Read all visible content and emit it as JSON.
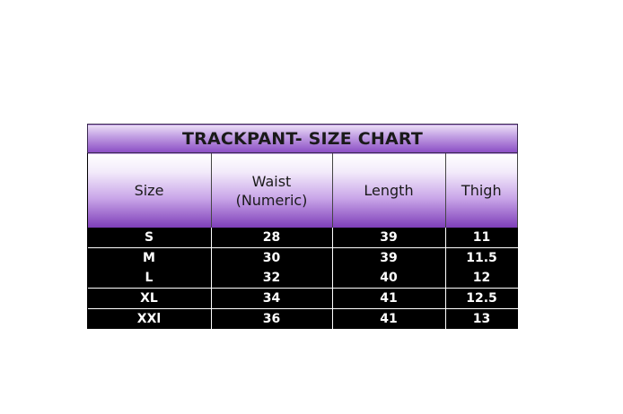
{
  "title": "TRACKPANT- SIZE CHART",
  "columns": [
    "Size",
    "Waist (Numeric)",
    "Length",
    "Thigh"
  ],
  "rows": [
    [
      "S",
      "28",
      "39",
      "11"
    ],
    [
      "M",
      "30",
      "39",
      "11.5"
    ],
    [
      "L",
      "32",
      "40",
      "12"
    ],
    [
      "XL",
      "34",
      "41",
      "12.5"
    ],
    [
      "XXl",
      "36",
      "41",
      "13"
    ]
  ],
  "colors": {
    "header_purple": "#7d3db8",
    "body_bg": "#000000",
    "body_text": "#ffffff"
  }
}
